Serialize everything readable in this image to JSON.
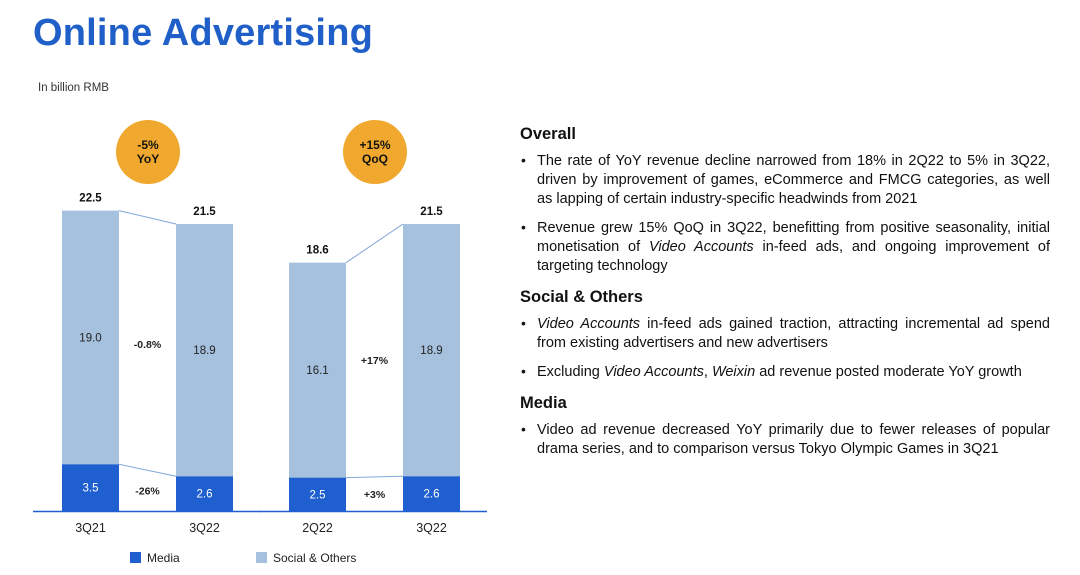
{
  "header": {
    "title": "Online Advertising",
    "unit_note": "In billion RMB"
  },
  "colors": {
    "media": "#1f5fd0",
    "social": "#a6c1de",
    "badge": "#f0a92e",
    "title": "#1f5fc7"
  },
  "chart_data": [
    {
      "type": "bar",
      "stacked": true,
      "categories": [
        "3Q21",
        "3Q22"
      ],
      "series": [
        {
          "name": "Media",
          "values": [
            3.5,
            2.6
          ]
        },
        {
          "name": "Social & Others",
          "values": [
            19.0,
            18.9
          ]
        }
      ],
      "totals": [
        22.5,
        21.5
      ],
      "change_labels": {
        "total": "-5%\nYoY",
        "social": "-0.8%",
        "media": "-26%"
      },
      "badge": {
        "line1": "-5%",
        "line2": "YoY"
      }
    },
    {
      "type": "bar",
      "stacked": true,
      "categories": [
        "2Q22",
        "3Q22"
      ],
      "series": [
        {
          "name": "Media",
          "values": [
            2.5,
            2.6
          ]
        },
        {
          "name": "Social & Others",
          "values": [
            16.1,
            18.9
          ]
        }
      ],
      "totals": [
        18.6,
        21.5
      ],
      "change_labels": {
        "total": "+15%\nQoQ",
        "social": "+17%",
        "media": "+3%"
      },
      "badge": {
        "line1": "+15%",
        "line2": "QoQ"
      }
    }
  ],
  "legend": [
    {
      "label": "Media",
      "color": "#1f5fd0"
    },
    {
      "label": "Social & Others",
      "color": "#a6c1de"
    }
  ],
  "commentary": {
    "overall": {
      "heading": "Overall",
      "bullets": [
        [
          "The rate of YoY revenue decline narrowed from 18% in 2Q22 to 5% in 3Q22, driven by improvement of games, eCommerce and FMCG categories, as well as lapping of certain industry-specific headwinds from 2021"
        ],
        [
          "Revenue grew 15% QoQ in 3Q22, benefitting from positive seasonality, initial monetisation of ",
          "Video Accounts",
          " in-feed ads, and ongoing improvement of targeting technology"
        ]
      ]
    },
    "social": {
      "heading": "Social & Others",
      "bullets": [
        [
          "",
          "Video Accounts",
          " in-feed ads gained traction, attracting incremental ad spend from existing advertisers and new advertisers"
        ],
        [
          "Excluding ",
          "Video Accounts",
          ", ",
          "Weixin",
          " ad revenue posted moderate YoY growth"
        ]
      ]
    },
    "media": {
      "heading": "Media",
      "bullets": [
        [
          "Video ad revenue decreased YoY primarily due to fewer releases of popular drama series, and to comparison versus Tokyo Olympic Games in 3Q21"
        ]
      ]
    }
  }
}
